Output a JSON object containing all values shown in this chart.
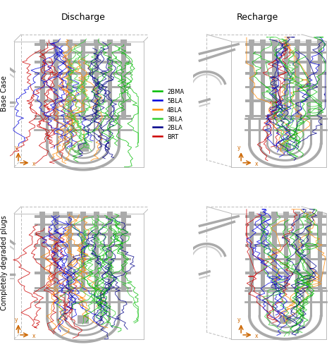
{
  "title_top_left": "Discharge",
  "title_top_right": "Recharge",
  "label_left_top": "Base Case",
  "label_left_bottom": "Completely degraded plugs",
  "legend_items": [
    {
      "label": "2BMA",
      "color": "#00bb00",
      "linewidth": 1.8
    },
    {
      "label": "5BLA",
      "color": "#0000dd",
      "linewidth": 1.8
    },
    {
      "label": "4BLA",
      "color": "#ff8800",
      "linewidth": 1.8
    },
    {
      "label": "3BLA",
      "color": "#33cc33",
      "linewidth": 1.8
    },
    {
      "label": "2BLA",
      "color": "#000088",
      "linewidth": 1.8
    },
    {
      "label": "BRT",
      "color": "#cc0000",
      "linewidth": 1.8
    }
  ],
  "line_colors": [
    "#cc0000",
    "#0000dd",
    "#ff8800",
    "#33cc33",
    "#000088",
    "#00bb00"
  ],
  "arrow_color": "#cc6600",
  "background_color": "#ffffff",
  "structure_color": "#aaaaaa",
  "structure_color_dark": "#888888",
  "fig_width": 4.74,
  "fig_height": 5.1,
  "dpi": 100
}
